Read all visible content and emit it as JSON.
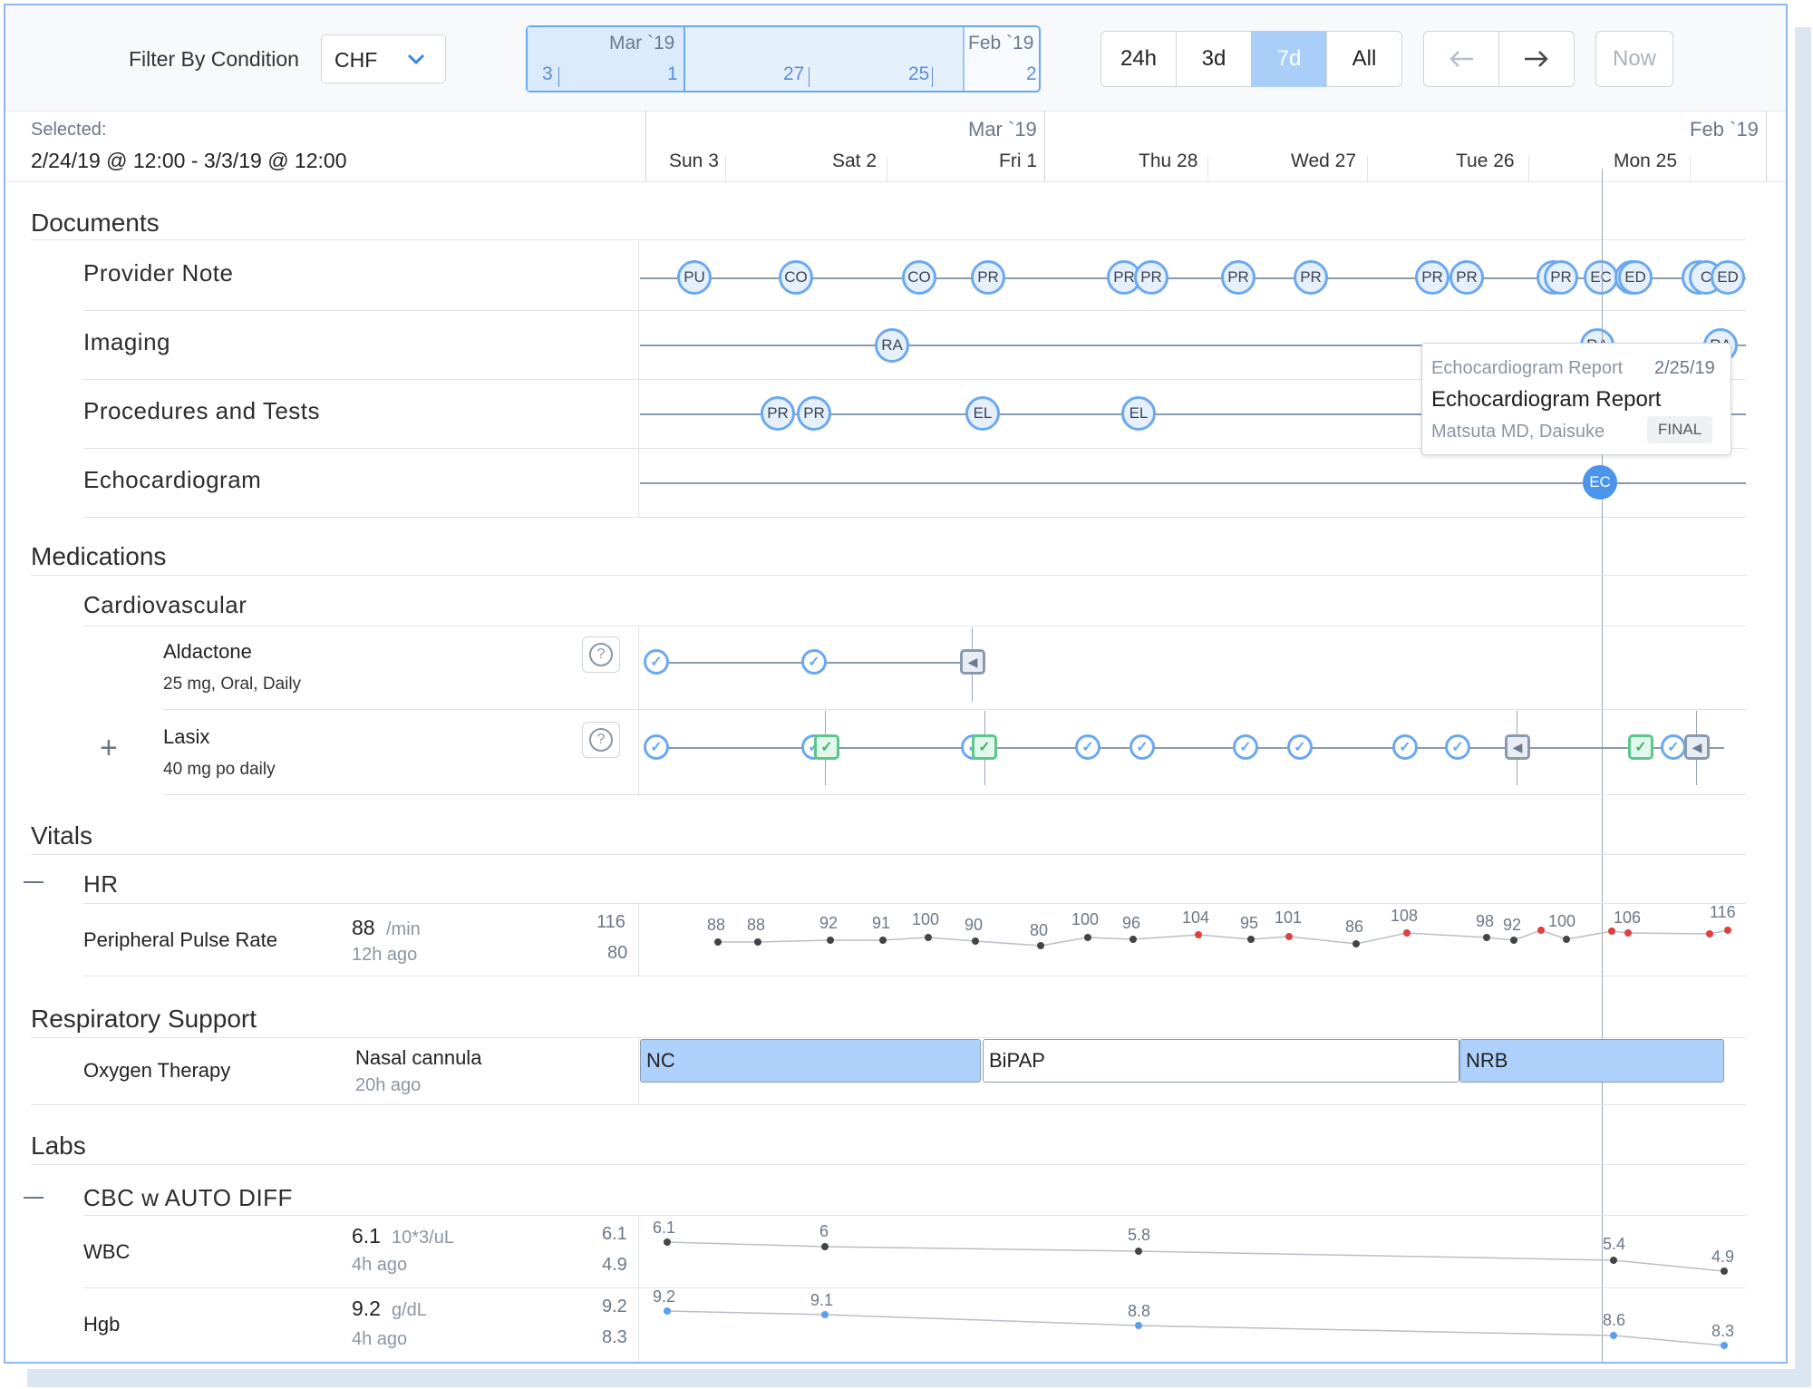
{
  "toolbar": {
    "filter_label": "Filter By Condition",
    "filter_value": "CHF",
    "range_labels": {
      "mar": "Mar `19",
      "feb": "Feb `19",
      "d3": "3",
      "d1": "1",
      "d27": "27",
      "d25": "25",
      "d2": "2"
    },
    "zoom": {
      "h24": "24h",
      "d3": "3d",
      "d7": "7d",
      "all": "All",
      "active": "7d"
    },
    "now_label": "Now"
  },
  "header": {
    "selected_label": "Selected:",
    "selected_range": "2/24/19 @ 12:00 - 3/3/19 @ 12:00",
    "month_mar": "Mar `19",
    "month_feb": "Feb `19",
    "days": [
      "Sun 3",
      "Sat 2",
      "Fri 1",
      "Thu 28",
      "Wed 27",
      "Tue 26",
      "Mon 25"
    ]
  },
  "documents": {
    "title": "Documents",
    "rows": {
      "provider_note": "Provider Note",
      "imaging": "Imaging",
      "procedures": "Procedures and Tests",
      "echo": "Echocardiogram"
    },
    "nodes": {
      "pu": "PU",
      "co": "CO",
      "pr": "PR",
      "ec": "EC",
      "ed": "ED",
      "c": "C",
      "ra": "RA",
      "el": "EL",
      "ra_partial": "RA"
    }
  },
  "tooltip": {
    "type": "Echocardiogram Report",
    "date": "2/25/19",
    "title": "Echocardiogram Report",
    "author": "Matsuta MD, Daisuke",
    "status": "FINAL"
  },
  "medications": {
    "title": "Medications",
    "group": "Cardiovascular",
    "items": [
      {
        "name": "Aldactone",
        "dose": "25 mg, Oral, Daily"
      },
      {
        "name": "Lasix",
        "dose": "40 mg po daily"
      }
    ],
    "help_icon": "?"
  },
  "vitals": {
    "title": "Vitals",
    "group": "HR",
    "row": "Peripheral Pulse Rate",
    "value": "88",
    "unit": "/min",
    "ago": "12h ago",
    "max": "116",
    "min": "80",
    "points": [
      "88",
      "88",
      "92",
      "91",
      "100",
      "90",
      "80",
      "100",
      "96",
      "104",
      "95",
      "101",
      "86",
      "108",
      "98",
      "92",
      "100",
      "106",
      "116"
    ]
  },
  "respiratory": {
    "title": "Respiratory Support",
    "row": "Oxygen Therapy",
    "value": "Nasal cannula",
    "ago": "20h ago",
    "bars": [
      "NC",
      "BiPAP",
      "NRB"
    ]
  },
  "labs": {
    "title": "Labs",
    "group": "CBC w AUTO DIFF",
    "wbc": {
      "name": "WBC",
      "value": "6.1",
      "unit": "10*3/uL",
      "ago": "4h ago",
      "max": "6.1",
      "min": "4.9",
      "points": [
        "6.1",
        "6",
        "5.8",
        "5.4",
        "4.9"
      ]
    },
    "hgb": {
      "name": "Hgb",
      "value": "9.2",
      "unit": "g/dL",
      "ago": "4h ago",
      "max": "9.2",
      "min": "8.3",
      "points": [
        "9.2",
        "9.1",
        "8.8",
        "8.6",
        "8.3"
      ]
    }
  },
  "colors": {
    "accent": "#6aa8ef",
    "active_zoom": "#a9cff8",
    "alert": "#e04040",
    "green": "#5bc88a"
  },
  "icons": {
    "chevron": "chevron-down-icon",
    "left": "arrow-left-icon",
    "right": "arrow-right-icon",
    "plus": "plus-icon",
    "minus": "minus-icon",
    "check": "check-icon",
    "stop": "stop-icon"
  }
}
